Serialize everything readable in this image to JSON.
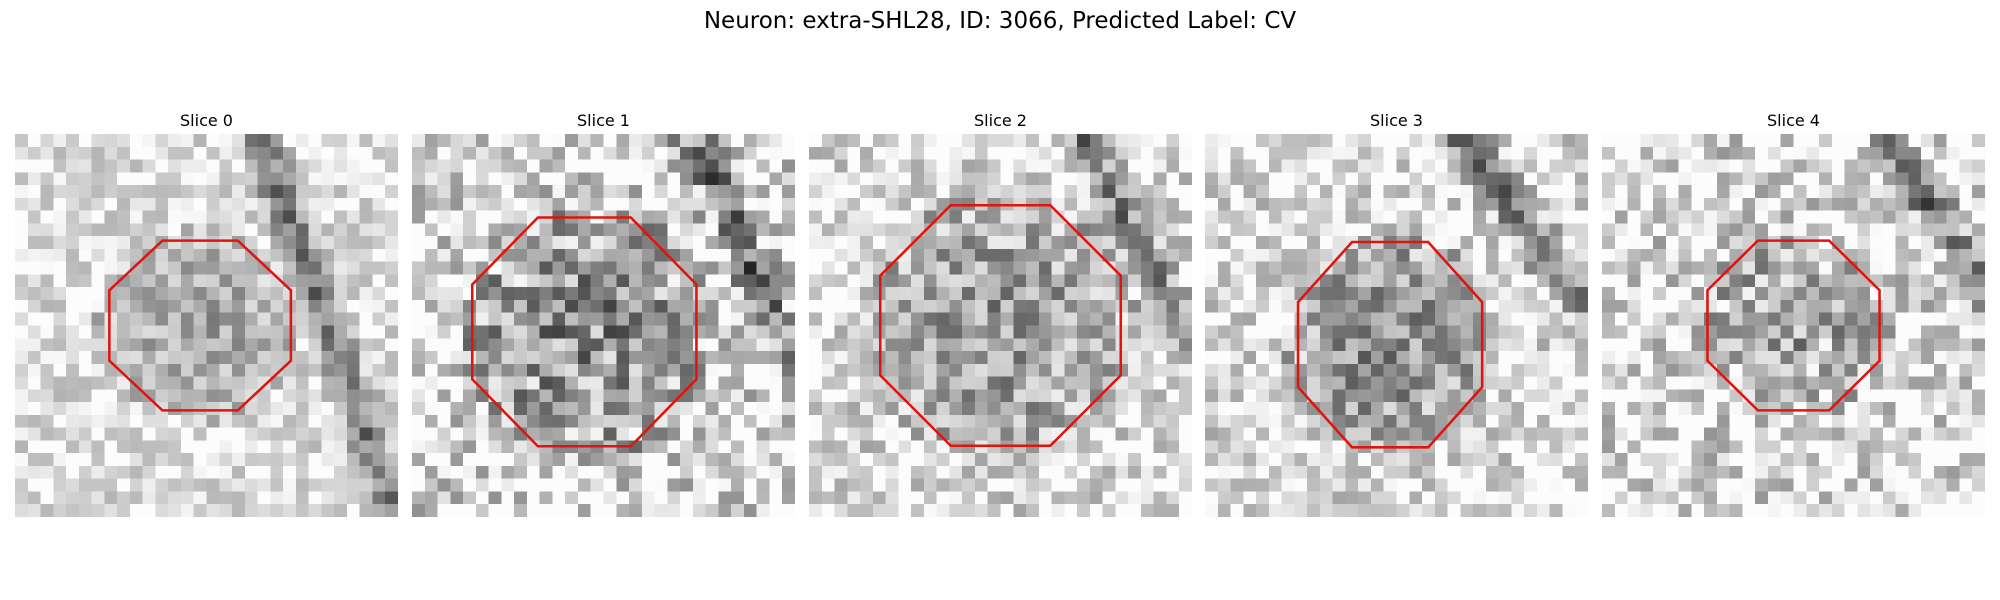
{
  "title": "Neuron: extra-SHL28, ID: 3066, Predicted Label: CV",
  "panels": [
    {
      "title": "Slice 0"
    },
    {
      "title": "Slice 1"
    },
    {
      "title": "Slice 2"
    },
    {
      "title": "Slice 3"
    },
    {
      "title": "Slice 4"
    }
  ]
}
